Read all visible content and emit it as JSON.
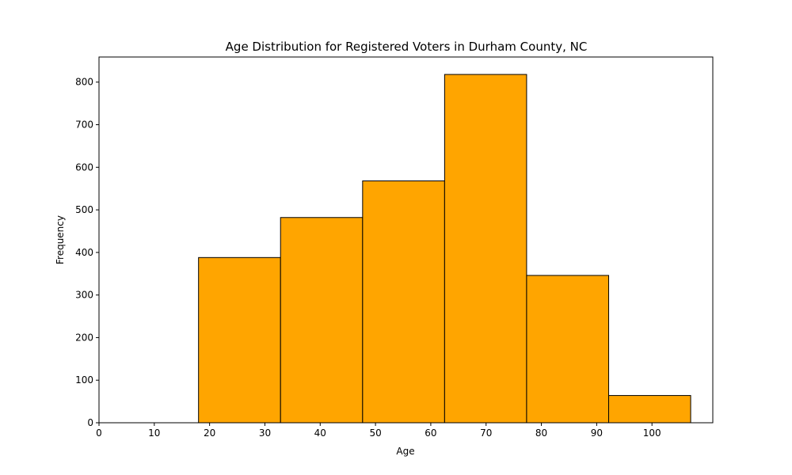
{
  "chart_data": {
    "type": "bar",
    "title": "Age Distribution for Registered Voters in Durham County, NC",
    "xlabel": "Age",
    "ylabel": "Frequency",
    "bin_edges": [
      18,
      32.83,
      47.67,
      62.5,
      77.33,
      92.17,
      107
    ],
    "values": [
      388,
      482,
      568,
      818,
      346,
      64
    ],
    "xlim": [
      0,
      111
    ],
    "ylim": [
      0,
      859
    ],
    "xticks": [
      0,
      10,
      20,
      30,
      40,
      50,
      60,
      70,
      80,
      90,
      100
    ],
    "yticks": [
      0,
      100,
      200,
      300,
      400,
      500,
      600,
      700,
      800
    ],
    "bar_color": "#ffa500",
    "edge_color": "#000000",
    "grid": false
  }
}
